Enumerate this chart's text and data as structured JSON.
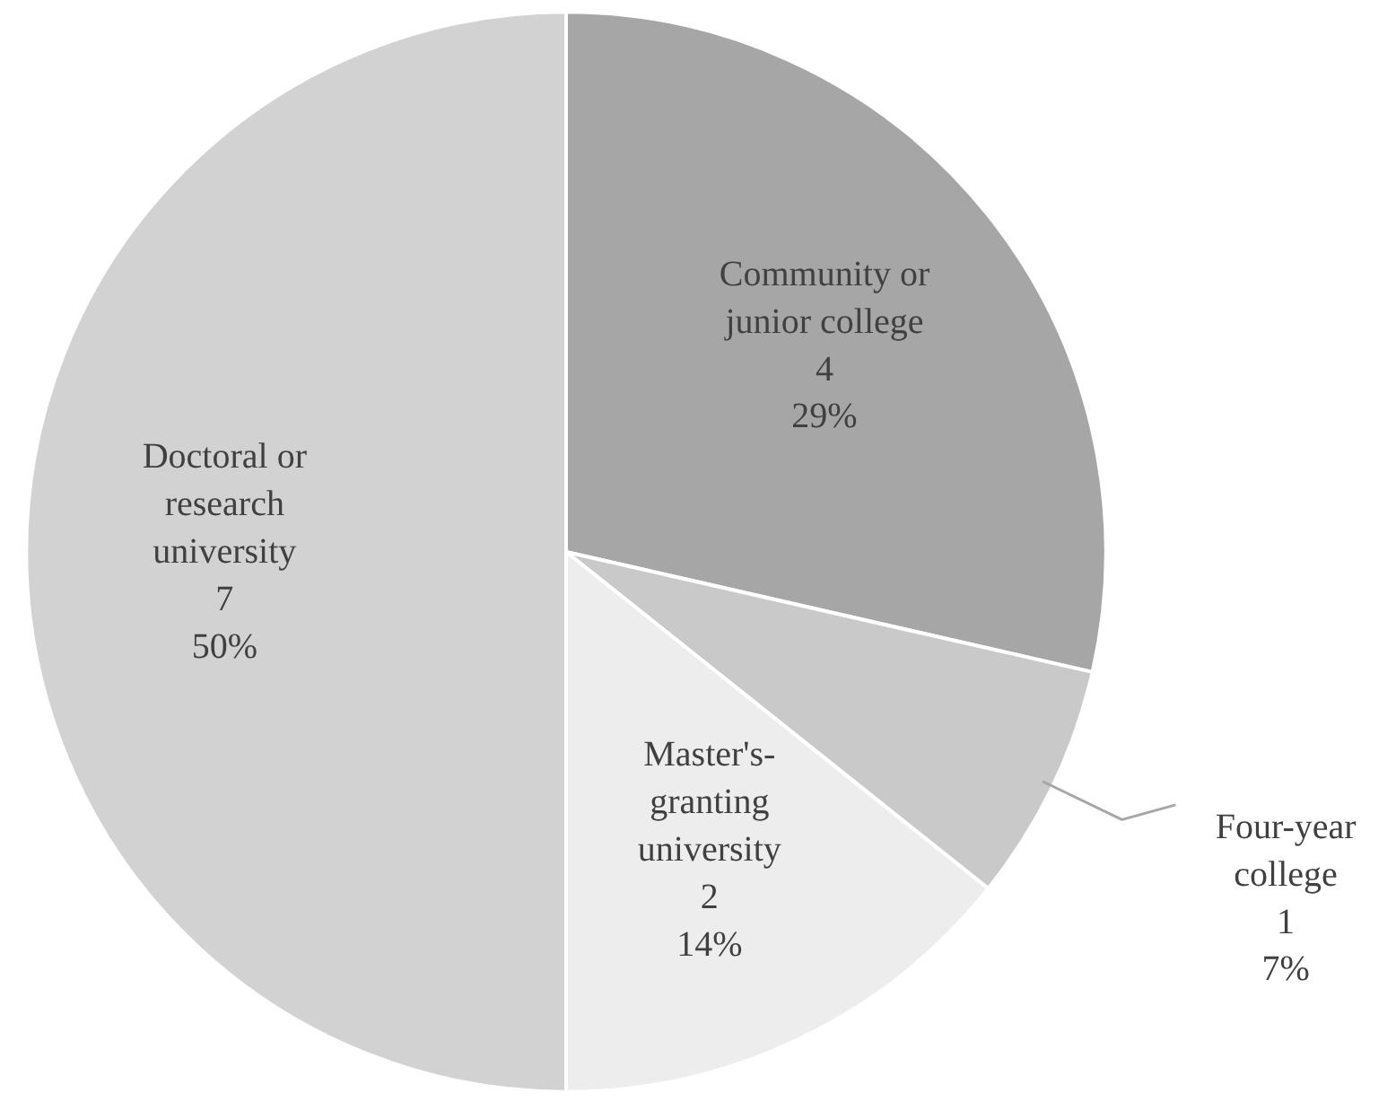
{
  "chart_data": {
    "type": "pie",
    "categories": [
      "Community or junior college",
      "Four-year college",
      "Master's-granting university",
      "Doctoral or research university"
    ],
    "values": [
      4,
      1,
      2,
      7
    ],
    "colors": [
      "#a6a6a6",
      "#c9c9c9",
      "#ededed",
      "#d2d2d2"
    ],
    "value_labels": [
      "4\n29%",
      "1\n7%",
      "2\n14%",
      "7\n50%"
    ]
  }
}
